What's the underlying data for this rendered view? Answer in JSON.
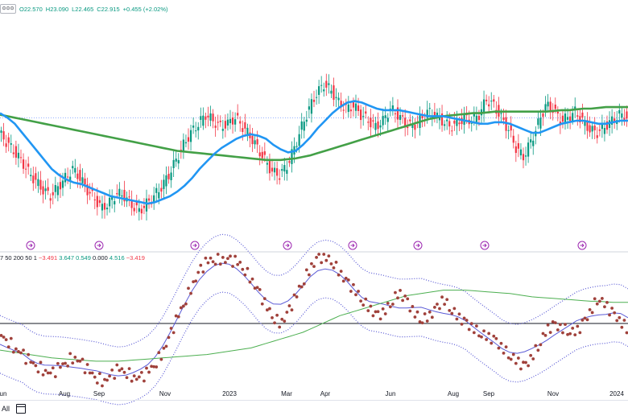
{
  "legend": {
    "toggle_label": "⊙⊙⊙",
    "open": "O22.570",
    "high": "H23.090",
    "low": "L22.465",
    "close": "C22.915",
    "change": "+0.455 (+2.02%)"
  },
  "indicator_legend": {
    "params": "7 50 200 50 1",
    "values": [
      {
        "text": "−3.491",
        "tone": "negative"
      },
      {
        "text": "3.647",
        "tone": "positive"
      },
      {
        "text": "0.549",
        "tone": "positive"
      },
      {
        "text": "0.000",
        "tone": "neutral"
      },
      {
        "text": "4.516",
        "tone": "positive"
      },
      {
        "text": "−3.419",
        "tone": "negative"
      }
    ]
  },
  "bottom_bar": {
    "range_label": "All",
    "calendar_icon": "calendar-icon"
  },
  "x_axis_labels": [
    "un",
    "Aug",
    "Sep",
    "Nov",
    "2023",
    "Mar",
    "Apr",
    "Jun",
    "Aug",
    "Sep",
    "Nov",
    "2024"
  ],
  "colors": {
    "up": "#089981",
    "down": "#f23645",
    "ma_fast": "#2196f3",
    "ma_slow": "#43a047",
    "dots": "#a0413b",
    "band": "#5b5bd6",
    "ind_ma": "#4caf50"
  },
  "chart_data": {
    "type": "candlestick",
    "series": [
      {
        "name": "price",
        "values": [
          25.2,
          24.6,
          24.0,
          23.4,
          22.6,
          22.0,
          21.4,
          21.0,
          21.6,
          22.2,
          22.8,
          22.2,
          21.4,
          20.8,
          20.2,
          20.6,
          21.2,
          21.0,
          20.4,
          20.0,
          20.5,
          21.0,
          21.6,
          22.4,
          23.4,
          24.4,
          25.2,
          25.8,
          26.4,
          26.0,
          25.6,
          25.8,
          26.2,
          25.6,
          25.0,
          24.2,
          23.4,
          22.6,
          22.4,
          23.0,
          24.2,
          25.6,
          26.8,
          27.8,
          28.4,
          28.0,
          27.2,
          26.8,
          27.0,
          26.4,
          26.0,
          25.6,
          26.0,
          26.8,
          26.4,
          25.8,
          25.6,
          26.0,
          26.6,
          26.4,
          26.0,
          25.6,
          25.8,
          26.2,
          26.0,
          26.4,
          27.4,
          27.0,
          26.2,
          25.4,
          24.2,
          23.6,
          24.6,
          25.8,
          27.0,
          26.8,
          26.0,
          26.2,
          26.6,
          26.0,
          25.4,
          25.2,
          25.6,
          26.0,
          26.4,
          26.2
        ]
      },
      {
        "name": "ma50",
        "values": [
          26.5,
          26.2,
          25.8,
          25.2,
          24.6,
          24.0,
          23.4,
          22.8,
          22.4,
          22.1,
          21.9,
          21.8,
          21.6,
          21.4,
          21.2,
          21.0,
          20.9,
          20.8,
          20.7,
          20.6,
          20.5,
          20.6,
          20.8,
          21.0,
          21.3,
          21.7,
          22.2,
          22.8,
          23.3,
          23.8,
          24.2,
          24.5,
          24.8,
          25.0,
          25.1,
          25.0,
          24.8,
          24.4,
          24.1,
          23.9,
          24.0,
          24.4,
          24.9,
          25.5,
          26.0,
          26.5,
          26.9,
          27.2,
          27.3,
          27.2,
          27.0,
          26.8,
          26.7,
          26.7,
          26.7,
          26.6,
          26.5,
          26.4,
          26.3,
          26.3,
          26.3,
          26.2,
          26.1,
          26.0,
          25.9,
          25.8,
          25.8,
          25.9,
          25.9,
          25.8,
          25.6,
          25.4,
          25.2,
          25.2,
          25.4,
          25.6,
          25.8,
          25.9,
          26.0,
          26.0,
          25.9,
          25.8,
          25.8,
          25.9,
          26.0,
          26.0
        ]
      },
      {
        "name": "ma200",
        "values": [
          26.4,
          26.3,
          26.2,
          26.1,
          26.0,
          25.9,
          25.8,
          25.7,
          25.6,
          25.5,
          25.4,
          25.3,
          25.2,
          25.1,
          25.0,
          24.9,
          24.8,
          24.7,
          24.6,
          24.5,
          24.4,
          24.3,
          24.2,
          24.1,
          24.0,
          23.95,
          23.9,
          23.85,
          23.8,
          23.75,
          23.7,
          23.65,
          23.6,
          23.55,
          23.5,
          23.45,
          23.4,
          23.4,
          23.4,
          23.45,
          23.5,
          23.6,
          23.7,
          23.85,
          24.0,
          24.15,
          24.3,
          24.45,
          24.6,
          24.75,
          24.9,
          25.05,
          25.2,
          25.35,
          25.5,
          25.65,
          25.8,
          25.95,
          26.1,
          26.2,
          26.3,
          26.35,
          26.4,
          26.45,
          26.5,
          26.5,
          26.55,
          26.6,
          26.6,
          26.6,
          26.6,
          26.6,
          26.6,
          26.6,
          26.6,
          26.65,
          26.7,
          26.7,
          26.75,
          26.8,
          26.8,
          26.85,
          26.9,
          26.9,
          26.9,
          26.9
        ]
      },
      {
        "name": "oscillator",
        "values": [
          -1.0,
          -1.5,
          -2.2,
          -2.8,
          -3.4,
          -3.8,
          -4.2,
          -4.6,
          -4.0,
          -3.4,
          -3.0,
          -3.6,
          -4.3,
          -4.8,
          -5.2,
          -4.8,
          -4.1,
          -4.3,
          -4.8,
          -5.0,
          -4.4,
          -3.6,
          -2.6,
          -1.2,
          0.5,
          2.0,
          3.4,
          4.6,
          5.6,
          5.8,
          5.8,
          5.6,
          5.6,
          5.0,
          4.0,
          2.8,
          1.6,
          0.6,
          0.0,
          0.9,
          2.4,
          3.8,
          5.0,
          5.8,
          6.0,
          5.6,
          4.6,
          3.6,
          3.0,
          2.2,
          1.4,
          0.6,
          1.0,
          2.0,
          2.8,
          2.0,
          1.0,
          0.4,
          0.6,
          1.2,
          2.2,
          1.4,
          0.6,
          0.0,
          -0.4,
          -0.8,
          -1.2,
          -1.6,
          -2.2,
          -2.8,
          -3.4,
          -4.0,
          -3.0,
          -1.8,
          -0.6,
          -0.2,
          -0.4,
          -0.6,
          -0.8,
          0.0,
          1.2,
          2.4,
          1.6,
          0.8,
          0.2,
          -0.5
        ]
      },
      {
        "name": "oscillator_ma",
        "values": [
          -2.4,
          -2.5,
          -2.6,
          -2.7,
          -2.8,
          -2.9,
          -3.0,
          -3.1,
          -3.15,
          -3.2,
          -3.25,
          -3.3,
          -3.35,
          -3.4,
          -3.4,
          -3.4,
          -3.4,
          -3.35,
          -3.3,
          -3.25,
          -3.2,
          -3.15,
          -3.1,
          -3.05,
          -3.0,
          -2.95,
          -2.9,
          -2.85,
          -2.8,
          -2.7,
          -2.6,
          -2.5,
          -2.4,
          -2.3,
          -2.2,
          -2.0,
          -1.8,
          -1.6,
          -1.4,
          -1.2,
          -1.0,
          -0.8,
          -0.5,
          -0.2,
          0.1,
          0.4,
          0.7,
          0.9,
          1.1,
          1.3,
          1.5,
          1.7,
          1.9,
          2.1,
          2.3,
          2.5,
          2.6,
          2.7,
          2.8,
          2.9,
          3.0,
          3.0,
          3.0,
          3.0,
          2.95,
          2.9,
          2.85,
          2.8,
          2.75,
          2.7,
          2.6,
          2.5,
          2.4,
          2.35,
          2.3,
          2.25,
          2.2,
          2.15,
          2.1,
          2.05,
          2.0,
          2.0,
          1.95,
          1.9,
          1.9,
          1.9
        ]
      }
    ]
  }
}
